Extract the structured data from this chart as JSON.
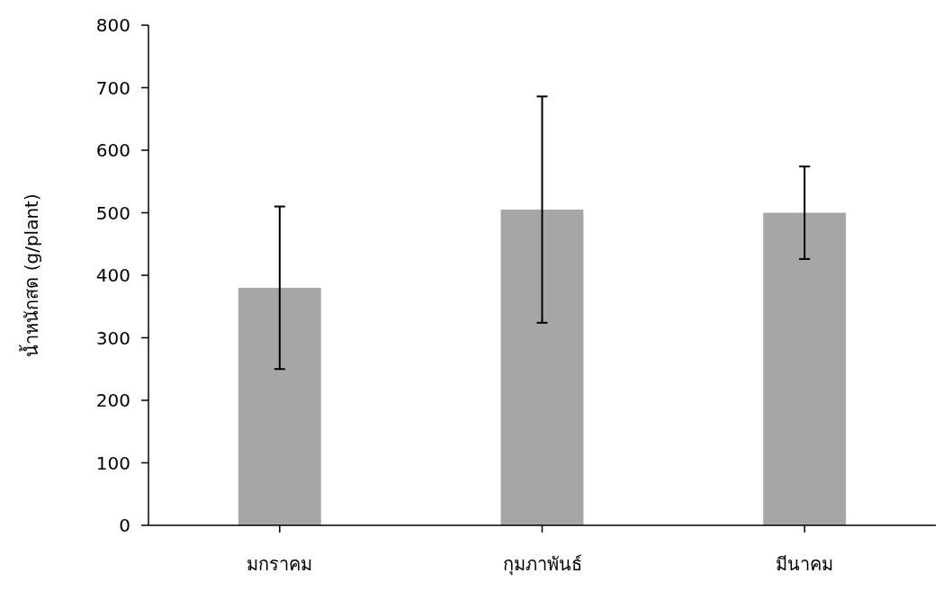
{
  "chart_data": {
    "type": "bar",
    "ylabel": "น้ำหนักสด (g/plant)",
    "categories": [
      "มกราคม",
      "กุมภาพันธ์",
      "มีนาคม"
    ],
    "values": [
      380,
      505,
      500
    ],
    "errors": [
      130,
      181,
      74
    ],
    "color": "#a6a6a6",
    "ylim": [
      0,
      800
    ],
    "yticks": [
      0,
      100,
      200,
      300,
      400,
      500,
      600,
      700,
      800
    ]
  }
}
